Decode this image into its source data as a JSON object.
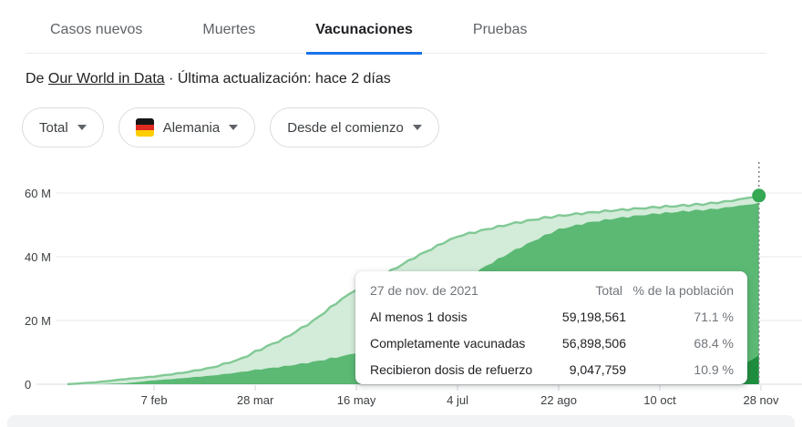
{
  "tabs": {
    "items": [
      {
        "label": "Casos nuevos",
        "active": false
      },
      {
        "label": "Muertes",
        "active": false
      },
      {
        "label": "Vacunaciones",
        "active": true
      },
      {
        "label": "Pruebas",
        "active": false
      }
    ],
    "active_underline_color": "#1a73e8"
  },
  "source_line": {
    "prefix": "De ",
    "link": "Our World in Data",
    "suffix": " · Última actualización: hace 2 días"
  },
  "filters": {
    "metric": {
      "label": "Total"
    },
    "country": {
      "label": "Alemania",
      "flag": "germany-flag"
    },
    "range": {
      "label": "Desde el comienzo"
    }
  },
  "tooltip": {
    "date": "27 de nov. de 2021",
    "col_total": "Total",
    "col_pct": "% de la población",
    "rows": [
      {
        "label": "Al menos 1 dosis",
        "total": "59,198,561",
        "pct": "71.1 %"
      },
      {
        "label": "Completamente vacunadas",
        "total": "56,898,506",
        "pct": "68.4 %"
      },
      {
        "label": "Recibieron dosis de refuerzo",
        "total": "9,047,759",
        "pct": "10.9 %"
      }
    ]
  },
  "chart_data": {
    "type": "area",
    "title": "Vacunaciones - Alemania - Total - Desde el comienzo",
    "x_unit": "days since 2020-12-27",
    "xlim_days": [
      0,
      336
    ],
    "y_unit": "millions of people",
    "ylim": [
      0,
      64
    ],
    "grid": true,
    "y_ticks": [
      {
        "value": 0,
        "label": "0"
      },
      {
        "value": 20,
        "label": "20 M"
      },
      {
        "value": 40,
        "label": "40 M"
      },
      {
        "value": 60,
        "label": "60 M"
      }
    ],
    "x_ticks": [
      {
        "day": 42,
        "label": "7 feb"
      },
      {
        "day": 91,
        "label": "28 mar"
      },
      {
        "day": 140,
        "label": "16 may"
      },
      {
        "day": 189,
        "label": "4 jul"
      },
      {
        "day": 238,
        "label": "22 ago"
      },
      {
        "day": 287,
        "label": "10 oct"
      },
      {
        "day": 336,
        "label": "28 nov"
      }
    ],
    "series": [
      {
        "name": "Al menos 1 dosis",
        "fill": "#d3ebd9",
        "stroke": "#81c995",
        "points": [
          [
            0,
            0
          ],
          [
            14,
            0.6
          ],
          [
            28,
            1.6
          ],
          [
            42,
            2.4
          ],
          [
            56,
            3.6
          ],
          [
            70,
            5.2
          ],
          [
            84,
            7.9
          ],
          [
            91,
            10.2
          ],
          [
            105,
            14.3
          ],
          [
            119,
            19.8
          ],
          [
            133,
            26.8
          ],
          [
            140,
            29.7
          ],
          [
            154,
            34.6
          ],
          [
            168,
            39.7
          ],
          [
            182,
            44.3
          ],
          [
            189,
            46.4
          ],
          [
            203,
            48.6
          ],
          [
            217,
            50.6
          ],
          [
            231,
            52.2
          ],
          [
            238,
            52.8
          ],
          [
            252,
            53.8
          ],
          [
            266,
            54.6
          ],
          [
            280,
            55.3
          ],
          [
            287,
            55.6
          ],
          [
            301,
            56.2
          ],
          [
            308,
            56.5
          ],
          [
            315,
            57.0
          ],
          [
            322,
            57.6
          ],
          [
            329,
            58.4
          ],
          [
            335,
            59.2
          ]
        ]
      },
      {
        "name": "Completamente vacunadas",
        "fill": "#5bb974",
        "stroke": "",
        "points": [
          [
            0,
            0
          ],
          [
            14,
            0.02
          ],
          [
            28,
            0.3
          ],
          [
            42,
            1.2
          ],
          [
            56,
            1.9
          ],
          [
            70,
            2.7
          ],
          [
            84,
            3.8
          ],
          [
            91,
            4.5
          ],
          [
            105,
            5.6
          ],
          [
            119,
            7.0
          ],
          [
            133,
            8.8
          ],
          [
            140,
            9.8
          ],
          [
            154,
            13.6
          ],
          [
            168,
            20.3
          ],
          [
            182,
            28.2
          ],
          [
            189,
            31.6
          ],
          [
            203,
            37.2
          ],
          [
            217,
            42.2
          ],
          [
            231,
            46.6
          ],
          [
            238,
            48.6
          ],
          [
            252,
            50.7
          ],
          [
            266,
            52.1
          ],
          [
            280,
            53.2
          ],
          [
            287,
            53.6
          ],
          [
            301,
            54.4
          ],
          [
            308,
            54.7
          ],
          [
            315,
            55.1
          ],
          [
            322,
            55.7
          ],
          [
            329,
            56.3
          ],
          [
            335,
            56.9
          ]
        ]
      },
      {
        "name": "Recibieron dosis de refuerzo",
        "fill": "#1e8e3e",
        "stroke": "",
        "points": [
          [
            0,
            0
          ],
          [
            224,
            0.05
          ],
          [
            238,
            0.1
          ],
          [
            252,
            0.35
          ],
          [
            266,
            0.7
          ],
          [
            280,
            1.1
          ],
          [
            287,
            1.4
          ],
          [
            301,
            2.2
          ],
          [
            308,
            2.8
          ],
          [
            315,
            3.7
          ],
          [
            322,
            5.0
          ],
          [
            329,
            6.8
          ],
          [
            335,
            9.0
          ]
        ]
      }
    ],
    "cursor": {
      "day": 335,
      "value_millions": 59.2,
      "dot_color": "#34a853",
      "line_color": "#80868b"
    }
  }
}
